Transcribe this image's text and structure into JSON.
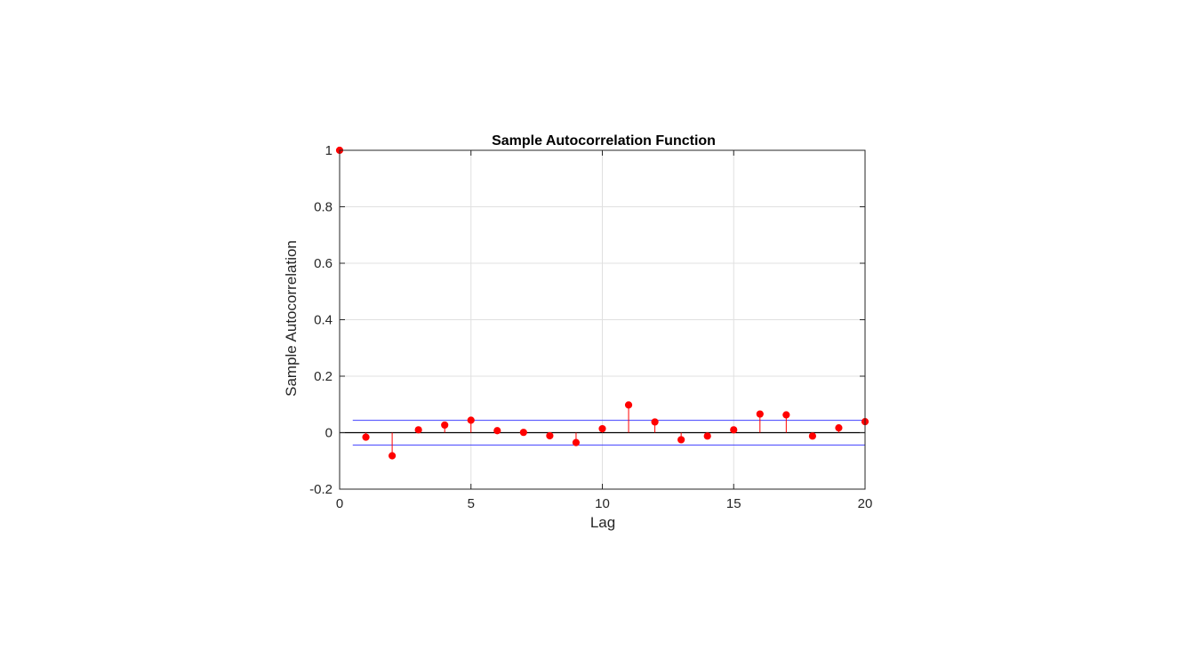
{
  "chart_data": {
    "type": "stem",
    "title": "Sample Autocorrelation Function",
    "xlabel": "Lag",
    "ylabel": "Sample Autocorrelation",
    "xlim": [
      0,
      20
    ],
    "ylim": [
      -0.2,
      1
    ],
    "xticks": [
      "0",
      "5",
      "10",
      "15",
      "20"
    ],
    "yticks": [
      "-0.2",
      "0",
      "0.2",
      "0.4",
      "0.6",
      "0.8",
      "1"
    ],
    "grid": true,
    "x": [
      0,
      1,
      2,
      3,
      4,
      5,
      6,
      7,
      8,
      9,
      10,
      11,
      12,
      13,
      14,
      15,
      16,
      17,
      18,
      19,
      20
    ],
    "values": [
      1.0,
      -0.016,
      -0.082,
      0.01,
      0.027,
      0.044,
      0.007,
      0.001,
      -0.011,
      -0.035,
      0.014,
      0.098,
      0.038,
      -0.025,
      -0.012,
      0.01,
      0.066,
      0.063,
      -0.012,
      0.017,
      0.039
    ],
    "confidence_bounds": [
      0.0436,
      -0.0436
    ],
    "colors": {
      "stem": "#ff0000",
      "bounds": "#4040ff",
      "zero_line": "#000000",
      "grid": "#e0e0e0",
      "axes": "#262626"
    }
  }
}
